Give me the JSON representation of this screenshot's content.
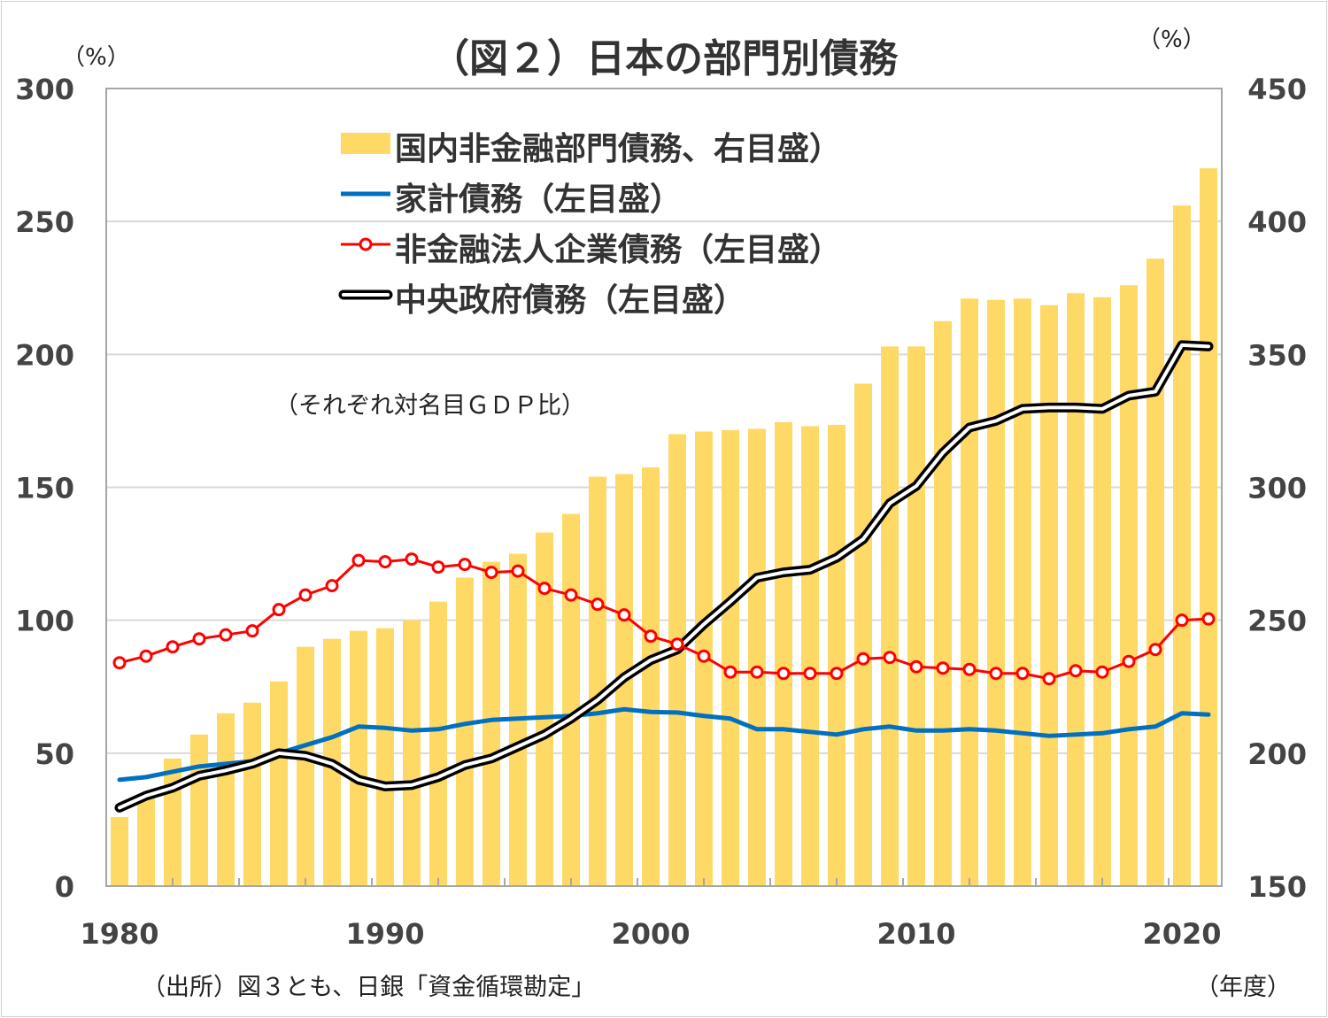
{
  "chart_data": {
    "type": "bar+line",
    "title": "（図２）日本の部門別債務",
    "left_unit": "（%）",
    "right_unit": "（%）",
    "x_unit": "（年度）",
    "annotation": "（それぞれ対名目ＧＤＰ比）",
    "source": "（出所）図３とも、日銀「資金循環勘定」",
    "left_axis": {
      "range": [
        0,
        300
      ],
      "ticks": [
        "0",
        "50",
        "100",
        "150",
        "200",
        "250",
        "300"
      ]
    },
    "right_axis": {
      "range": [
        150,
        450
      ],
      "ticks": [
        "150",
        "200",
        "250",
        "300",
        "350",
        "400",
        "450"
      ]
    },
    "x_ticks": [
      "1980",
      "1990",
      "2000",
      "2010",
      "2020"
    ],
    "grid": true,
    "legend_placement": "top-left",
    "years": [
      1980,
      1981,
      1982,
      1983,
      1984,
      1985,
      1986,
      1987,
      1988,
      1989,
      1990,
      1991,
      1992,
      1993,
      1994,
      1995,
      1996,
      1997,
      1998,
      1999,
      2000,
      2001,
      2002,
      2003,
      2004,
      2005,
      2006,
      2007,
      2008,
      2009,
      2010,
      2011,
      2012,
      2013,
      2014,
      2015,
      2016,
      2017,
      2018,
      2019,
      2020,
      2021
    ],
    "series": [
      {
        "name": "国内非金融部門債務、右目盛）",
        "type": "bar",
        "axis": "right",
        "color": "#FFD966",
        "values": [
          176,
          183,
          198,
          207,
          215,
          219,
          227,
          240,
          243,
          246,
          247,
          250,
          257,
          266,
          272,
          275,
          283,
          290,
          304,
          305,
          307.5,
          320,
          321,
          321.5,
          322,
          324.5,
          323,
          323.5,
          339,
          353,
          353,
          362.5,
          371,
          370.5,
          371,
          368.5,
          373,
          371.5,
          376,
          386,
          406,
          420
        ]
      },
      {
        "name": "家計債務（左目盛）",
        "type": "line",
        "axis": "left",
        "color": "#0070C0",
        "values": [
          40,
          41,
          43,
          45,
          46,
          47,
          50,
          53,
          56,
          60,
          59.5,
          58.5,
          59,
          61,
          62.5,
          63,
          63.5,
          64,
          65,
          66.5,
          65.5,
          65.3,
          64,
          63,
          59,
          59,
          58,
          57,
          59,
          60,
          58.5,
          58.5,
          59,
          58.5,
          57.5,
          56.5,
          57,
          57.5,
          59,
          60,
          65,
          64.5
        ]
      },
      {
        "name": "非金融法人企業債務（左目盛）",
        "type": "line-marker",
        "axis": "left",
        "color": "#FF0000",
        "values": [
          84,
          86.5,
          90,
          93,
          94.5,
          96,
          104,
          109.5,
          113,
          122.5,
          122,
          123,
          120,
          121,
          118,
          118.5,
          112,
          109.5,
          106,
          102,
          94,
          91,
          86.5,
          80.5,
          80.5,
          80,
          80,
          80,
          85.5,
          86,
          82.5,
          82,
          81.5,
          80,
          80,
          78,
          81,
          80.5,
          84.5,
          89,
          100,
          100.5
        ]
      },
      {
        "name": "中央政府債務（左目盛）",
        "type": "double-line",
        "axis": "left",
        "color": "#000000",
        "values": [
          29.5,
          34,
          37,
          41.5,
          43.5,
          46,
          50,
          49,
          46,
          40,
          37.5,
          38,
          41,
          45.5,
          48,
          52.5,
          57,
          63,
          70,
          78.5,
          85,
          89,
          98.5,
          107,
          116,
          118,
          119,
          123.5,
          130.5,
          144,
          150.5,
          163,
          172.5,
          175,
          179.5,
          180,
          180,
          179.5,
          184.5,
          186,
          203.5,
          203
        ]
      }
    ]
  }
}
